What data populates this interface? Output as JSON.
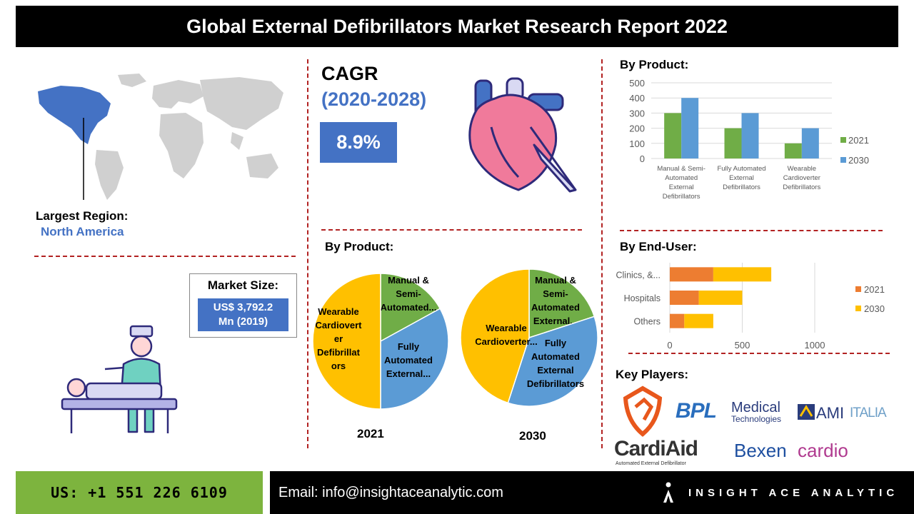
{
  "title": "Global External Defibrillators Market Research Report 2022",
  "region": {
    "label": "Largest Region:",
    "value": "North America"
  },
  "market_size": {
    "label": "Market Size:",
    "value_line1": "US$  3,792.2",
    "value_line2": "Mn (2019)"
  },
  "cagr": {
    "label": "CAGR",
    "period": "(2020-2028)",
    "value": "8.9%"
  },
  "footer": {
    "phone": "US: +1 551 226 6109",
    "email": "Email: info@insightaceanalytic.com",
    "brand": "INSIGHT ACE ANALYTIC"
  },
  "key_players": {
    "label": "Key Players:",
    "logos": [
      {
        "name": "BPL",
        "text1": "BPL",
        "text2": "Medical",
        "text3": "Technologies"
      },
      {
        "name": "AMI Italia",
        "text1": "AMI",
        "text2": "ITALIA"
      },
      {
        "name": "CardiAid",
        "text1": "CardiAid",
        "text2": "Automated External Defibrillator"
      },
      {
        "name": "Bexen cardio",
        "text1": "Bexen",
        "text2": "cardio"
      }
    ]
  },
  "colors": {
    "blue": "#4472c4",
    "green": "#70ad47",
    "orange": "#ed7d31",
    "yellow": "#ffc000",
    "red_divider": "#b22222"
  },
  "chart_data": [
    {
      "type": "bar",
      "title": "By Product:",
      "categories": [
        "Manual & Semi-Automated External Defibrillators",
        "Fully Automated External Defibrillators",
        "Wearable Cardioverter Defibrillators"
      ],
      "category_lines": [
        [
          "Manual & Semi-",
          "Automated",
          "External",
          "Defibrillators"
        ],
        [
          "Fully Automated",
          "External",
          "Defibrillators"
        ],
        [
          "Wearable",
          "Cardioverter",
          "Defibrillators"
        ]
      ],
      "series": [
        {
          "name": "2021",
          "values": [
            300,
            200,
            100
          ],
          "color": "#70ad47"
        },
        {
          "name": "2030",
          "values": [
            400,
            300,
            200
          ],
          "color": "#5b9bd5"
        }
      ],
      "ylim": [
        0,
        500
      ],
      "yticks": [
        0,
        100,
        200,
        300,
        400,
        500
      ],
      "grid": true,
      "legend": "right"
    },
    {
      "type": "bar",
      "orientation": "horizontal",
      "stacked": true,
      "title": "By End-User:",
      "categories": [
        "Clinics, &...",
        "Hospitals",
        "Others"
      ],
      "series": [
        {
          "name": "2021",
          "values": [
            300,
            200,
            100
          ],
          "color": "#ed7d31"
        },
        {
          "name": "2030",
          "values": [
            400,
            300,
            200
          ],
          "color": "#ffc000"
        }
      ],
      "xlim": [
        0,
        1000
      ],
      "xticks": [
        0,
        500,
        1000
      ],
      "legend": "right"
    },
    {
      "type": "pie",
      "title": "By Product:",
      "year": "2021",
      "slices": [
        {
          "label_lines": [
            "Manual &",
            "Semi-",
            "Automated..."
          ],
          "value": 17,
          "color": "#70ad47"
        },
        {
          "label_lines": [
            "Fully",
            "Automated",
            "External..."
          ],
          "value": 33,
          "color": "#5b9bd5"
        },
        {
          "label_lines": [
            "Wearable",
            "Cardiovert",
            "er",
            "Defibrillat",
            "ors"
          ],
          "value": 50,
          "color": "#ffc000"
        }
      ]
    },
    {
      "type": "pie",
      "year": "2030",
      "slices": [
        {
          "label_lines": [
            "Manual &",
            "Semi-",
            "Automated",
            "External..."
          ],
          "value": 20,
          "color": "#70ad47"
        },
        {
          "label_lines": [
            "Fully",
            "Automated",
            "External",
            "Defibrillators"
          ],
          "value": 35,
          "color": "#5b9bd5"
        },
        {
          "label_lines": [
            "Wearable",
            "Cardioverter..."
          ],
          "value": 45,
          "color": "#ffc000"
        }
      ]
    }
  ]
}
